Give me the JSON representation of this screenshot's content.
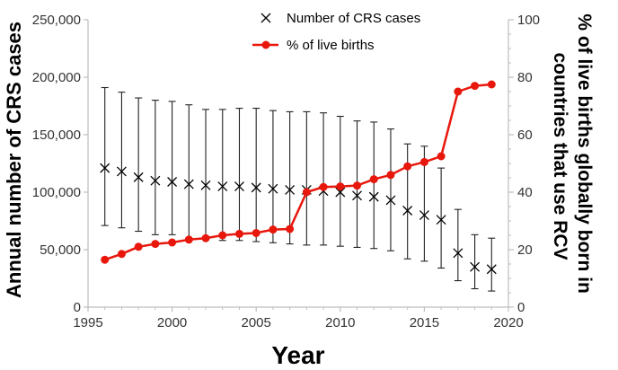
{
  "chart_data": {
    "type": "line",
    "xlabel": "Year",
    "ylabel_left": "Annual number of CRS cases",
    "ylabel_right": [
      "% of live births globally born in",
      "countries that use RCV"
    ],
    "xlim": [
      1995,
      2020
    ],
    "ylim_left": [
      0,
      250000
    ],
    "ylim_right": [
      0,
      100
    ],
    "x_ticks": [
      "1995",
      "2000",
      "2005",
      "2010",
      "2015",
      "2020"
    ],
    "y_left_ticks": [
      "0",
      "50,000",
      "100,000",
      "150,000",
      "200,000",
      "250,000"
    ],
    "y_right_ticks": [
      "0",
      "20",
      "40",
      "60",
      "80",
      "100"
    ],
    "grid": false,
    "legend_position": "top-center",
    "x": [
      1996,
      1997,
      1998,
      1999,
      2000,
      2001,
      2002,
      2003,
      2004,
      2005,
      2006,
      2007,
      2008,
      2009,
      2010,
      2011,
      2012,
      2013,
      2014,
      2015,
      2016,
      2017,
      2018,
      2019
    ],
    "series": [
      {
        "name": "Number of CRS cases",
        "axis": "left",
        "marker": "x",
        "color": "#000000",
        "values": [
          121000,
          118000,
          113000,
          110000,
          109000,
          107000,
          106000,
          105000,
          105000,
          104000,
          103000,
          102000,
          102000,
          101000,
          100000,
          97000,
          96000,
          93000,
          84000,
          80000,
          76000,
          47000,
          35000,
          33000
        ],
        "upper": [
          191000,
          187000,
          182000,
          180000,
          179000,
          176000,
          172000,
          172000,
          173000,
          173000,
          171000,
          170000,
          170000,
          169000,
          166000,
          162000,
          161000,
          155000,
          142000,
          140000,
          121000,
          85000,
          63000,
          60000
        ],
        "lower": [
          71000,
          69000,
          66000,
          63000,
          63000,
          60000,
          59000,
          58000,
          58000,
          57000,
          56000,
          55000,
          54000,
          54000,
          53000,
          52000,
          51000,
          49000,
          42000,
          40000,
          34000,
          23000,
          16000,
          14000
        ]
      },
      {
        "name": "% of live births",
        "axis": "right",
        "marker": "circle",
        "color": "#e8170c",
        "values": [
          16.5,
          18.5,
          21,
          22,
          22.5,
          23.5,
          24,
          25,
          25.5,
          25.8,
          27,
          27.2,
          40,
          41.8,
          42,
          42.3,
          44.5,
          46,
          49,
          50.5,
          52.5,
          75,
          77,
          77.5
        ]
      }
    ]
  }
}
